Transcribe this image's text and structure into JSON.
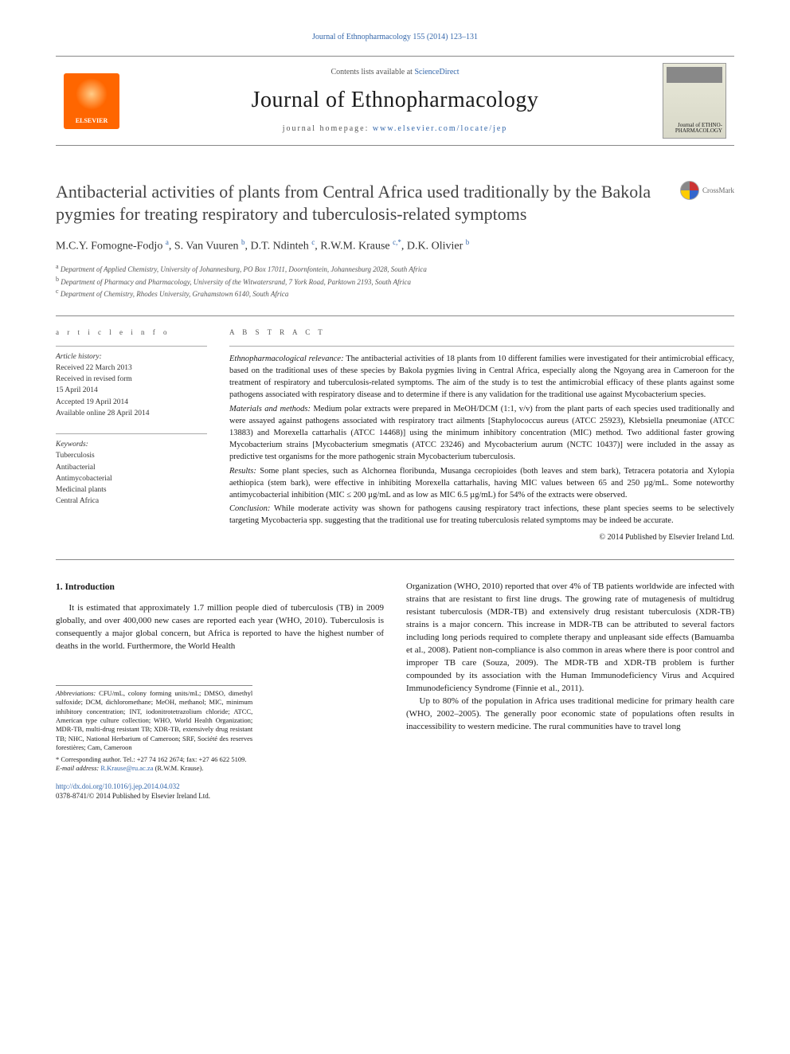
{
  "meta": {
    "top_citation": "Journal of Ethnopharmacology 155 (2014) 123–131",
    "contents_prefix": "Contents lists available at ",
    "contents_link": "ScienceDirect",
    "journal_name": "Journal of Ethnopharmacology",
    "homepage_prefix": "journal homepage: ",
    "homepage_link": "www.elsevier.com/locate/jep",
    "elsevier_label": "ELSEVIER",
    "cover_journal": "Journal of ETHNO-PHARMACOLOGY",
    "crossmark": "CrossMark"
  },
  "article": {
    "title": "Antibacterial activities of plants from Central Africa used traditionally by the Bakola pygmies for treating respiratory and tuberculosis-related symptoms",
    "authors_html": "M.C.Y. Fomogne-Fodjo <sup>a</sup>, S. Van Vuuren <sup>b</sup>, D.T. Ndinteh <sup>c</sup>, R.W.M. Krause <sup>c,*</sup>, D.K. Olivier <sup>b</sup>",
    "aff_a": "Department of Applied Chemistry, University of Johannesburg, PO Box 17011, Doornfontein, Johannesburg 2028, South Africa",
    "aff_b": "Department of Pharmacy and Pharmacology, University of the Witwatersrand, 7 York Road, Parktown 2193, South Africa",
    "aff_c": "Department of Chemistry, Rhodes University, Grahamstown 6140, South Africa"
  },
  "article_info": {
    "head": "a r t i c l e  i n f o",
    "history_label": "Article history:",
    "received": "Received 22 March 2013",
    "revised": "Received in revised form\n15 April 2014",
    "accepted": "Accepted 19 April 2014",
    "online": "Available online 28 April 2014",
    "keywords_label": "Keywords:",
    "keywords": [
      "Tuberculosis",
      "Antibacterial",
      "Antimycobacterial",
      "Medicinal plants",
      "Central Africa"
    ]
  },
  "abstract": {
    "head": "A B S T R A C T",
    "relevance_label": "Ethnopharmacological relevance:",
    "relevance": "The antibacterial activities of 18 plants from 10 different families were investigated for their antimicrobial efficacy, based on the traditional uses of these species by Bakola pygmies living in Central Africa, especially along the Ngoyang area in Cameroon for the treatment of respiratory and tuberculosis-related symptoms. The aim of the study is to test the antimicrobial efficacy of these plants against some pathogens associated with respiratory disease and to determine if there is any validation for the traditional use against Mycobacterium species.",
    "methods_label": "Materials and methods:",
    "methods": "Medium polar extracts were prepared in MeOH/DCM (1:1, v/v) from the plant parts of each species used traditionally and were assayed against pathogens associated with respiratory tract ailments [Staphylococcus aureus (ATCC 25923), Klebsiella pneumoniae (ATCC 13883) and Morexella cattarhalis (ATCC 14468)] using the minimum inhibitory concentration (MIC) method. Two additional faster growing Mycobacterium strains [Mycobacterium smegmatis (ATCC 23246) and Mycobacterium aurum (NCTC 10437)] were included in the assay as predictive test organisms for the more pathogenic strain Mycobacterium tuberculosis.",
    "results_label": "Results:",
    "results": "Some plant species, such as Alchornea floribunda, Musanga cecropioides (both leaves and stem bark), Tetracera potatoria and Xylopia aethiopica (stem bark), were effective in inhibiting Morexella cattarhalis, having MIC values between 65 and 250 µg/mL. Some noteworthy antimycobacterial inhibition (MIC ≤ 200 µg/mL and as low as MIC 6.5 µg/mL) for 54% of the extracts were observed.",
    "conclusion_label": "Conclusion:",
    "conclusion": "While moderate activity was shown for pathogens causing respiratory tract infections, these plant species seems to be selectively targeting Mycobacteria spp. suggesting that the traditional use for treating tuberculosis related symptoms may be indeed be accurate.",
    "copyright": "© 2014 Published by Elsevier Ireland Ltd."
  },
  "body": {
    "intro_head": "1.  Introduction",
    "intro_p1": "It is estimated that approximately 1.7 million people died of tuberculosis (TB) in 2009 globally, and over 400,000 new cases are reported each year (WHO, 2010). Tuberculosis is consequently a major global concern, but Africa is reported to have the highest number of deaths in the world. Furthermore, the World Health",
    "intro_p2": "Organization (WHO, 2010) reported that over 4% of TB patients worldwide are infected with strains that are resistant to first line drugs. The growing rate of mutagenesis of multidrug resistant tuberculosis (MDR-TB) and extensively drug resistant tuberculosis (XDR-TB) strains is a major concern. This increase in MDR-TB can be attributed to several factors including long periods required to complete therapy and unpleasant side effects (Bamuamba et al., 2008). Patient non-compliance is also common in areas where there is poor control and improper TB care (Souza, 2009). The MDR-TB and XDR-TB problem is further compounded by its association with the Human Immunodeficiency Virus and Acquired Immunodeficiency Syndrome (Finnie et al., 2011).",
    "intro_p3": "Up to 80% of the population in Africa uses traditional medicine for primary health care (WHO, 2002–2005). The generally poor economic state of populations often results in inaccessibility to western medicine. The rural communities have to travel long"
  },
  "footnotes": {
    "abbr_label": "Abbreviations:",
    "abbr": "CFU/mL, colony forming units/mL; DMSO, dimethyl sulfoxide; DCM, dichloromethane; MeOH, methanol; MIC, minimum inhibitory concentration; INT, iodonitrotetrazolium chloride; ATCC, American type culture collection; WHO, World Health Organization; MDR-TB, multi-drug resistant TB; XDR-TB, extensively drug resistant TB; NHC, National Herbarium of Cameroon; SRF, Société des reserves forestières; Cam, Cameroon",
    "corresponding": "* Corresponding author. Tel.: +27 74 162 2674; fax: +27 46 622 5109.",
    "email_label": "E-mail address:",
    "email": "R.Krause@ru.ac.za",
    "email_suffix": "(R.W.M. Krause)."
  },
  "doi": {
    "link": "http://dx.doi.org/10.1016/j.jep.2014.04.032",
    "line": "0378-8741/© 2014 Published by Elsevier Ireland Ltd."
  },
  "colors": {
    "link": "#3366aa",
    "elsevier_orange": "#ff6600",
    "text": "#1a1a1a",
    "muted": "#555555",
    "rule": "#888888"
  },
  "typography": {
    "body_pt": 11,
    "abstract_pt": 10.5,
    "title_pt": 22,
    "journal_pt": 28,
    "small_pt": 9
  }
}
